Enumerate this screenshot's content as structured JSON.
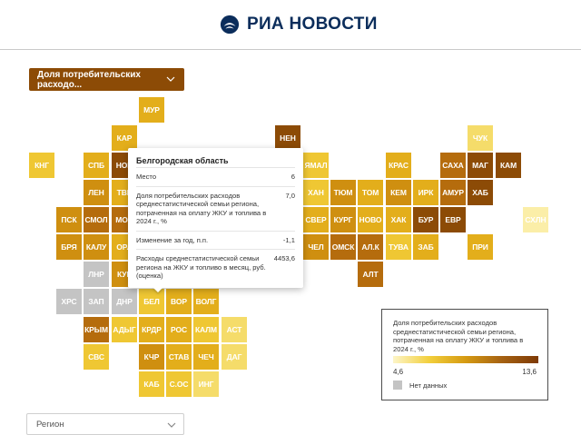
{
  "header": {
    "logo_text": "РИА НОВОСТИ",
    "logo_icon": "ria-emblem-icon",
    "brand_color": "#0b2d5b"
  },
  "indicator_select": {
    "label": "Доля потребительских расходо...",
    "icon": "chevron-down-icon",
    "bg_color": "#8c4b06"
  },
  "palette": {
    "c1": "#fbeea8",
    "c2": "#f5dc6a",
    "c3": "#efc733",
    "c4": "#e3ae1b",
    "c5": "#cf8f10",
    "c6": "#b56c0d",
    "c7": "#8c4b06",
    "nodata": "#c4c4c4"
  },
  "tiles": [
    {
      "label": "МУР",
      "c": "c4"
    },
    {
      "label": "КАР",
      "c": "c4"
    },
    {
      "label": "НЕН",
      "c": "c7"
    },
    {
      "label": "ЧУК",
      "c": "c2"
    },
    {
      "label": "КНГ",
      "c": "c3"
    },
    {
      "label": "СПБ",
      "c": "c4"
    },
    {
      "label": "НОВ",
      "c": "c7"
    },
    {
      "label": "ЯМАЛ",
      "c": "c3"
    },
    {
      "label": "КРАС",
      "c": "c4"
    },
    {
      "label": "САХА",
      "c": "c6"
    },
    {
      "label": "МАГ",
      "c": "c7"
    },
    {
      "label": "КАМ",
      "c": "c7"
    },
    {
      "label": "ЛЕН",
      "c": "c5"
    },
    {
      "label": "ТВЕ",
      "c": "c4"
    },
    {
      "label": "ХАН",
      "c": "c3"
    },
    {
      "label": "ТЮМ",
      "c": "c5"
    },
    {
      "label": "ТОМ",
      "c": "c4"
    },
    {
      "label": "КЕМ",
      "c": "c5"
    },
    {
      "label": "ИРК",
      "c": "c4"
    },
    {
      "label": "АМУР",
      "c": "c6"
    },
    {
      "label": "ХАБ",
      "c": "c7"
    },
    {
      "label": "ПСК",
      "c": "c5"
    },
    {
      "label": "СМОЛ",
      "c": "c6"
    },
    {
      "label": "МОС",
      "c": "c6"
    },
    {
      "label": "СВЕР",
      "c": "c4"
    },
    {
      "label": "КУРГ",
      "c": "c5"
    },
    {
      "label": "НОВО",
      "c": "c4"
    },
    {
      "label": "ХАК",
      "c": "c4"
    },
    {
      "label": "БУР",
      "c": "c7"
    },
    {
      "label": "ЕВР",
      "c": "c7"
    },
    {
      "label": "СХЛН",
      "c": "c1"
    },
    {
      "label": "БРЯ",
      "c": "c5"
    },
    {
      "label": "КАЛУ",
      "c": "c5"
    },
    {
      "label": "ОРЛ",
      "c": "c4"
    },
    {
      "label": "ЧЕЛ",
      "c": "c5"
    },
    {
      "label": "ОМСК",
      "c": "c6"
    },
    {
      "label": "АЛ.К",
      "c": "c6"
    },
    {
      "label": "ТУВА",
      "c": "c3"
    },
    {
      "label": "ЗАБ",
      "c": "c4"
    },
    {
      "label": "ПРИ",
      "c": "c4"
    },
    {
      "label": "ЛНР",
      "c": "nodata"
    },
    {
      "label": "КУР",
      "c": "c5"
    },
    {
      "label": "АЛТ",
      "c": "c6"
    },
    {
      "label": "ХРС",
      "c": "nodata"
    },
    {
      "label": "ЗАП",
      "c": "nodata"
    },
    {
      "label": "ДНР",
      "c": "nodata"
    },
    {
      "label": "БЕЛ",
      "c": "c3"
    },
    {
      "label": "ВОР",
      "c": "c4"
    },
    {
      "label": "ВОЛГ",
      "c": "c4"
    },
    {
      "label": "КРЫМ",
      "c": "c6"
    },
    {
      "label": "АДЫГ",
      "c": "c3"
    },
    {
      "label": "КРДР",
      "c": "c4"
    },
    {
      "label": "РОС",
      "c": "c4"
    },
    {
      "label": "КАЛМ",
      "c": "c3"
    },
    {
      "label": "АСТ",
      "c": "c2"
    },
    {
      "label": "СВС",
      "c": "c3"
    },
    {
      "label": "КЧР",
      "c": "c5"
    },
    {
      "label": "СТАВ",
      "c": "c4"
    },
    {
      "label": "ЧЕЧ",
      "c": "c4"
    },
    {
      "label": "ДАГ",
      "c": "c2"
    },
    {
      "label": "КАБ",
      "c": "c3"
    },
    {
      "label": "С.ОС",
      "c": "c3"
    },
    {
      "label": "ИНГ",
      "c": "c2"
    }
  ],
  "tooltip": {
    "title": "Белгородская область",
    "rows": [
      {
        "label": "Место",
        "value": "6"
      },
      {
        "label": "Доля потребительских расходов среднестатистической семьи региона, потраченная на оплату ЖКУ и топлива в 2024 г., %",
        "value": "7,0"
      },
      {
        "label": "Изменение за год, п.п.",
        "value": "-1,1"
      },
      {
        "label": "Расходы среднестатистической семьи региона на ЖКУ и топливо в месяц, руб. (оценка)",
        "value": "4453,6"
      }
    ]
  },
  "legend": {
    "title": "Доля потребительских расходов среднестатистической семьи региона, потраченная на оплату ЖКУ и топлива в 2024 г., %",
    "min": "4,6",
    "max": "13,6",
    "no_data": "Нет данных"
  },
  "region_select": {
    "placeholder": "Регион",
    "icon": "chevron-down-icon"
  }
}
